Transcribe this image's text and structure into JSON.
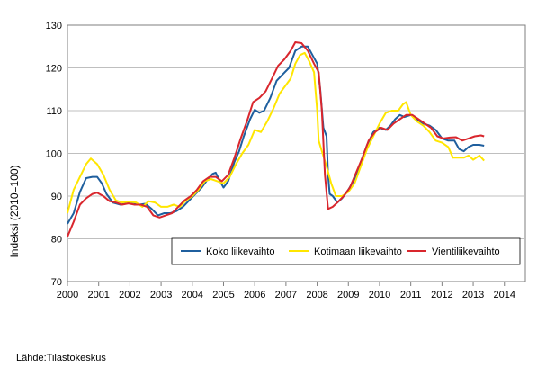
{
  "chart_data": {
    "type": "line",
    "title": "",
    "xlabel": "",
    "ylabel": "Indeksi (2010=100)",
    "ylim": [
      70,
      130
    ],
    "xlim": [
      2000,
      2014.67
    ],
    "yticks": [
      70,
      80,
      90,
      100,
      110,
      120,
      130
    ],
    "xticks": [
      "2000",
      "2001",
      "2002",
      "2003",
      "2004",
      "2005",
      "2006",
      "2007",
      "2008",
      "2009",
      "2010",
      "2011",
      "2012",
      "2013",
      "2014"
    ],
    "grid": "horizontal",
    "legend_position": "bottom-right",
    "series": [
      {
        "name": "Koko liikevaihto",
        "color": "#1f5f9e",
        "points": [
          [
            2000.0,
            83.5
          ],
          [
            2000.2,
            86
          ],
          [
            2000.4,
            91
          ],
          [
            2000.6,
            94.2
          ],
          [
            2000.8,
            94.5
          ],
          [
            2000.95,
            94.5
          ],
          [
            2001.1,
            93
          ],
          [
            2001.25,
            90.5
          ],
          [
            2001.45,
            88.5
          ],
          [
            2001.7,
            88
          ],
          [
            2001.9,
            88.3
          ],
          [
            2002.1,
            88.5
          ],
          [
            2002.3,
            88
          ],
          [
            2002.5,
            88.2
          ],
          [
            2002.7,
            87
          ],
          [
            2002.9,
            85.5
          ],
          [
            2003.1,
            86
          ],
          [
            2003.3,
            86
          ],
          [
            2003.5,
            86.5
          ],
          [
            2003.7,
            87.5
          ],
          [
            2003.9,
            89
          ],
          [
            2004.1,
            90.5
          ],
          [
            2004.3,
            92
          ],
          [
            2004.5,
            94
          ],
          [
            2004.65,
            95.2
          ],
          [
            2004.75,
            95.5
          ],
          [
            2004.85,
            94
          ],
          [
            2005.0,
            92
          ],
          [
            2005.15,
            93.5
          ],
          [
            2005.35,
            98
          ],
          [
            2005.5,
            100.5
          ],
          [
            2005.65,
            104
          ],
          [
            2005.85,
            108
          ],
          [
            2006.0,
            110.2
          ],
          [
            2006.15,
            109.5
          ],
          [
            2006.3,
            110
          ],
          [
            2006.5,
            113
          ],
          [
            2006.7,
            117
          ],
          [
            2006.9,
            118.5
          ],
          [
            2007.1,
            120
          ],
          [
            2007.3,
            124
          ],
          [
            2007.5,
            125
          ],
          [
            2007.7,
            125
          ],
          [
            2007.85,
            123
          ],
          [
            2008.0,
            121
          ],
          [
            2008.1,
            115
          ],
          [
            2008.2,
            106
          ],
          [
            2008.3,
            104
          ],
          [
            2008.35,
            95
          ],
          [
            2008.4,
            90.5
          ],
          [
            2008.5,
            90
          ],
          [
            2008.65,
            88.5
          ],
          [
            2008.8,
            89.5
          ],
          [
            2009.0,
            91.5
          ],
          [
            2009.2,
            94
          ],
          [
            2009.4,
            98
          ],
          [
            2009.6,
            102
          ],
          [
            2009.8,
            105
          ],
          [
            2010.0,
            106
          ],
          [
            2010.2,
            105.5
          ],
          [
            2010.35,
            106.5
          ],
          [
            2010.5,
            108
          ],
          [
            2010.65,
            109
          ],
          [
            2010.8,
            108.5
          ],
          [
            2011.0,
            109
          ],
          [
            2011.2,
            108
          ],
          [
            2011.4,
            107
          ],
          [
            2011.6,
            106.5
          ],
          [
            2011.8,
            105.5
          ],
          [
            2012.0,
            103.5
          ],
          [
            2012.2,
            103
          ],
          [
            2012.4,
            103
          ],
          [
            2012.55,
            101
          ],
          [
            2012.7,
            100.5
          ],
          [
            2012.85,
            101.5
          ],
          [
            2013.0,
            102
          ],
          [
            2013.2,
            102
          ],
          [
            2013.35,
            101.8
          ]
        ]
      },
      {
        "name": "Kotimaan liikevaihto",
        "color": "#ffe600",
        "points": [
          [
            2000.0,
            86
          ],
          [
            2000.2,
            91.5
          ],
          [
            2000.4,
            94.5
          ],
          [
            2000.6,
            97.5
          ],
          [
            2000.75,
            98.8
          ],
          [
            2000.95,
            97.5
          ],
          [
            2001.15,
            95
          ],
          [
            2001.35,
            91.5
          ],
          [
            2001.55,
            89
          ],
          [
            2001.75,
            88.5
          ],
          [
            2001.95,
            88.7
          ],
          [
            2002.2,
            88.5
          ],
          [
            2002.4,
            87.5
          ],
          [
            2002.6,
            88.8
          ],
          [
            2002.8,
            88.5
          ],
          [
            2003.0,
            87.5
          ],
          [
            2003.2,
            87.5
          ],
          [
            2003.4,
            88
          ],
          [
            2003.6,
            87.5
          ],
          [
            2003.8,
            89
          ],
          [
            2004.0,
            90
          ],
          [
            2004.2,
            91.5
          ],
          [
            2004.4,
            93.5
          ],
          [
            2004.6,
            94
          ],
          [
            2004.8,
            93.5
          ],
          [
            2005.0,
            93
          ],
          [
            2005.2,
            94.5
          ],
          [
            2005.4,
            97.5
          ],
          [
            2005.6,
            100
          ],
          [
            2005.8,
            102
          ],
          [
            2006.0,
            105.5
          ],
          [
            2006.2,
            105
          ],
          [
            2006.4,
            107.5
          ],
          [
            2006.6,
            110.5
          ],
          [
            2006.8,
            114
          ],
          [
            2007.0,
            116
          ],
          [
            2007.15,
            117.5
          ],
          [
            2007.3,
            121
          ],
          [
            2007.45,
            123
          ],
          [
            2007.6,
            123.5
          ],
          [
            2007.75,
            121.5
          ],
          [
            2007.9,
            119
          ],
          [
            2008.0,
            110
          ],
          [
            2008.05,
            103
          ],
          [
            2008.15,
            100.5
          ],
          [
            2008.3,
            97
          ],
          [
            2008.45,
            93
          ],
          [
            2008.6,
            90
          ],
          [
            2008.8,
            90
          ],
          [
            2009.0,
            91
          ],
          [
            2009.2,
            93
          ],
          [
            2009.4,
            97
          ],
          [
            2009.6,
            101
          ],
          [
            2009.8,
            104
          ],
          [
            2010.0,
            107
          ],
          [
            2010.2,
            109.5
          ],
          [
            2010.4,
            110
          ],
          [
            2010.6,
            110
          ],
          [
            2010.75,
            111.5
          ],
          [
            2010.85,
            112
          ],
          [
            2011.0,
            109
          ],
          [
            2011.2,
            107.5
          ],
          [
            2011.4,
            106.5
          ],
          [
            2011.6,
            105
          ],
          [
            2011.8,
            103
          ],
          [
            2012.0,
            102.5
          ],
          [
            2012.2,
            101.5
          ],
          [
            2012.35,
            99
          ],
          [
            2012.5,
            99
          ],
          [
            2012.7,
            99
          ],
          [
            2012.85,
            99.5
          ],
          [
            2013.0,
            98.5
          ],
          [
            2013.2,
            99.5
          ],
          [
            2013.35,
            98.3
          ]
        ]
      },
      {
        "name": "Vientiliikevaihto",
        "color": "#d9262d",
        "points": [
          [
            2000.0,
            80.5
          ],
          [
            2000.2,
            84
          ],
          [
            2000.4,
            88
          ],
          [
            2000.6,
            89.5
          ],
          [
            2000.8,
            90.5
          ],
          [
            2000.95,
            90.8
          ],
          [
            2001.15,
            90
          ],
          [
            2001.35,
            88.8
          ],
          [
            2001.55,
            88.5
          ],
          [
            2001.75,
            88
          ],
          [
            2001.95,
            88.3
          ],
          [
            2002.15,
            88
          ],
          [
            2002.35,
            88
          ],
          [
            2002.55,
            87.5
          ],
          [
            2002.75,
            85.5
          ],
          [
            2002.95,
            85
          ],
          [
            2003.15,
            85.5
          ],
          [
            2003.35,
            86
          ],
          [
            2003.55,
            87.5
          ],
          [
            2003.75,
            89
          ],
          [
            2003.95,
            90
          ],
          [
            2004.15,
            91.5
          ],
          [
            2004.35,
            93.5
          ],
          [
            2004.55,
            94.5
          ],
          [
            2004.75,
            94.5
          ],
          [
            2004.95,
            93.5
          ],
          [
            2005.15,
            95
          ],
          [
            2005.35,
            99
          ],
          [
            2005.55,
            103.5
          ],
          [
            2005.75,
            107.5
          ],
          [
            2005.95,
            112
          ],
          [
            2006.15,
            113
          ],
          [
            2006.35,
            114.5
          ],
          [
            2006.55,
            117.5
          ],
          [
            2006.75,
            120.5
          ],
          [
            2006.95,
            122
          ],
          [
            2007.15,
            124
          ],
          [
            2007.3,
            126
          ],
          [
            2007.5,
            125.8
          ],
          [
            2007.7,
            124
          ],
          [
            2007.9,
            121
          ],
          [
            2008.05,
            119
          ],
          [
            2008.15,
            110
          ],
          [
            2008.25,
            95
          ],
          [
            2008.35,
            87
          ],
          [
            2008.5,
            87.5
          ],
          [
            2008.65,
            88.5
          ],
          [
            2008.85,
            90
          ],
          [
            2009.05,
            92
          ],
          [
            2009.25,
            95.5
          ],
          [
            2009.45,
            99
          ],
          [
            2009.65,
            103
          ],
          [
            2009.85,
            105
          ],
          [
            2010.05,
            106
          ],
          [
            2010.25,
            105.5
          ],
          [
            2010.45,
            107
          ],
          [
            2010.65,
            108
          ],
          [
            2010.85,
            109
          ],
          [
            2011.05,
            109
          ],
          [
            2011.25,
            108
          ],
          [
            2011.45,
            107
          ],
          [
            2011.65,
            106
          ],
          [
            2011.85,
            104
          ],
          [
            2012.05,
            103.5
          ],
          [
            2012.25,
            103.7
          ],
          [
            2012.45,
            103.8
          ],
          [
            2012.65,
            103
          ],
          [
            2012.85,
            103.5
          ],
          [
            2013.05,
            104
          ],
          [
            2013.25,
            104.2
          ],
          [
            2013.35,
            104
          ]
        ]
      }
    ]
  },
  "source_text": "Lähde:Tilastokeskus"
}
